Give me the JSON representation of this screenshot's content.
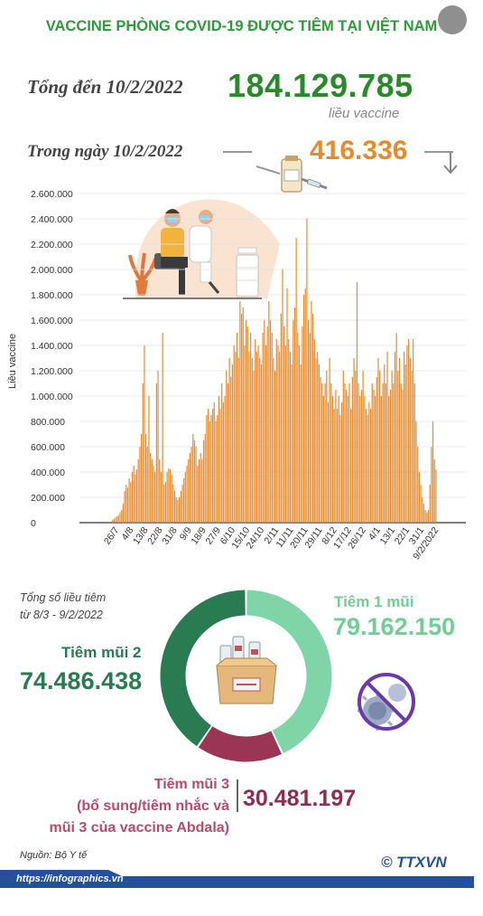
{
  "header": {
    "title": "VACCINE PHÒNG COVID-19 ĐƯỢC TIÊM TẠI VIỆT NAM",
    "total_label": "Tổng đến 10/2/2022",
    "total_value": "184.129.785",
    "total_unit": "liều vaccine",
    "day_label": "Trong ngày 10/2/2022",
    "day_value": "416.336"
  },
  "colors": {
    "title_green": "#2e9a3c",
    "total_green": "#2a8a2a",
    "bar_orange": "#e8892a",
    "dose1": "#7fd4a8",
    "dose2": "#2a7a52",
    "dose3": "#9b3555",
    "footer_blue": "#27509b"
  },
  "icons": [
    "share-icon",
    "vaccine-vial-icon",
    "down-arrow-icon",
    "vaccination-illustration",
    "vaccine-box-icon",
    "no-virus-icon",
    "ttxvn-logo"
  ],
  "chart_data": {
    "type": "bar",
    "ylabel": "Liều vaccine",
    "ylim": [
      0,
      2600000
    ],
    "yticks": [
      "0",
      "200.000",
      "400.000",
      "600.000",
      "800.000",
      "1.000.000",
      "1.200.000",
      "1.400.000",
      "1.600.000",
      "1.800.000",
      "2.000.000",
      "2.200.000",
      "2.400.000",
      "2.600.000"
    ],
    "xticks": [
      "26/7",
      "4/8",
      "13/8",
      "22/8",
      "31/8",
      "9/9",
      "18/9",
      "27/9",
      "6/10",
      "15/10",
      "24/10",
      "2/11",
      "11/11",
      "20/11",
      "29/11",
      "8/12",
      "17/12",
      "26/12",
      "4/1",
      "13/1",
      "22/1",
      "31/1",
      "9/2/2022"
    ],
    "values": [
      20000,
      30000,
      40000,
      50000,
      60000,
      80000,
      100000,
      150000,
      250000,
      300000,
      280000,
      350000,
      320000,
      400000,
      450000,
      380000,
      420000,
      500000,
      600000,
      700000,
      1100000,
      1400000,
      700000,
      600000,
      1000000,
      550000,
      500000,
      450000,
      400000,
      1100000,
      1200000,
      500000,
      400000,
      1500000,
      300000,
      320000,
      400000,
      430000,
      420000,
      380000,
      300000,
      250000,
      200000,
      180000,
      200000,
      250000,
      300000,
      350000,
      400000,
      450000,
      500000,
      550000,
      600000,
      700000,
      650000,
      600000,
      450000,
      500000,
      550000,
      500000,
      650000,
      700000,
      850000,
      900000,
      800000,
      850000,
      900000,
      950000,
      800000,
      850000,
      1000000,
      900000,
      1100000,
      950000,
      1000000,
      1200000,
      1100000,
      1300000,
      1150000,
      1250000,
      1400000,
      1350000,
      1500000,
      1300000,
      1750000,
      1650000,
      1700000,
      1400000,
      1600000,
      1550000,
      1350000,
      1500000,
      1300000,
      1200000,
      1450000,
      1350000,
      1400000,
      1300000,
      1250000,
      1500000,
      1600000,
      1400000,
      1550000,
      1750000,
      1600000,
      1500000,
      1300000,
      1200000,
      1450000,
      1400000,
      1350000,
      1650000,
      2000000,
      1550000,
      1400000,
      1850000,
      1450000,
      1350000,
      1250000,
      1600000,
      1700000,
      2250000,
      1500000,
      1400000,
      1250000,
      1550000,
      1800000,
      1850000,
      2400000,
      1600000,
      1500000,
      1750000,
      1650000,
      1450000,
      1300000,
      1350000,
      1250000,
      1150000,
      1100000,
      1000000,
      1100000,
      1200000,
      950000,
      1300000,
      1100000,
      1000000,
      900000,
      1050000,
      900000,
      1000000,
      850000,
      950000,
      1200000,
      1100000,
      1050000,
      1000000,
      1100000,
      900000,
      1150000,
      1300000,
      1200000,
      1900000,
      1100000,
      1000000,
      1050000,
      1200000,
      1000000,
      900000,
      850000,
      950000,
      900000,
      1100000,
      1050000,
      1000000,
      1150000,
      1300000,
      1200000,
      1000000,
      1100000,
      1250000,
      1100000,
      1350000,
      1000000,
      1050000,
      1200000,
      1100000,
      1350000,
      1500000,
      1200000,
      1300000,
      1100000,
      1050000,
      1350000,
      1250000,
      1400000,
      1450000,
      1300000,
      1200000,
      1450000,
      1100000,
      800000,
      600000,
      400000,
      300000,
      200000,
      150000,
      100000,
      80000,
      100000,
      300000,
      600000,
      800000,
      500000,
      420000
    ],
    "donut": {
      "caption_line1": "Tổng số liều tiêm",
      "caption_line2": "từ 8/3 - 9/2/2022",
      "segments": [
        {
          "name": "Tiêm 1 mũi",
          "value": 79162150,
          "display": "79.162.150",
          "color": "#7fd4a8"
        },
        {
          "name": "Tiêm mũi 3",
          "value": 30481197,
          "display": "30.481.197",
          "color": "#9b3555"
        },
        {
          "name": "Tiêm mũi 2",
          "value": 74486438,
          "display": "74.486.438",
          "color": "#2a7a52"
        }
      ]
    }
  },
  "donut_labels": {
    "dose1_label": "Tiêm 1 mũi",
    "dose2_label": "Tiêm mũi 2",
    "dose3_line1": "Tiêm mũi 3",
    "dose3_line2": "(bổ sung/tiêm nhắc và",
    "dose3_line3": "mũi 3 của vaccine Abdala)"
  },
  "footer": {
    "source": "Nguồn: Bộ Y tế",
    "url": "https://infographics.vn",
    "logo_symbol": "©",
    "logo_text": "TTXVN"
  }
}
